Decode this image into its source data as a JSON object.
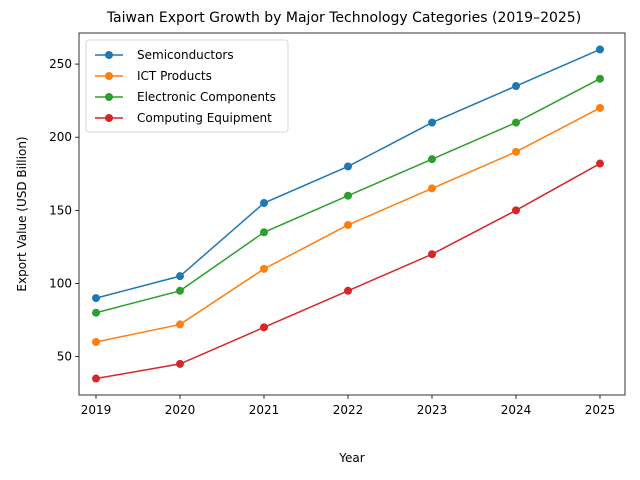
{
  "chart_data": {
    "type": "line",
    "title": "Taiwan Export Growth by Major Technology Categories (2019–2025)",
    "xlabel": "Year",
    "ylabel": "Export Value (USD Billion)",
    "x": [
      "2019",
      "2020",
      "2021",
      "2022",
      "2023",
      "2024",
      "2025"
    ],
    "ylim": [
      23.75,
      271.25
    ],
    "yticks": [
      50,
      100,
      150,
      200,
      250
    ],
    "legend_position": "upper-left",
    "grid": false,
    "series": [
      {
        "name": "Semiconductors",
        "color": "#1f77b4",
        "values": [
          90,
          105,
          155,
          180,
          210,
          235,
          260
        ]
      },
      {
        "name": "ICT Products",
        "color": "#ff7f0e",
        "values": [
          60,
          72,
          110,
          140,
          165,
          190,
          220
        ]
      },
      {
        "name": "Electronic Components",
        "color": "#2ca02c",
        "values": [
          80,
          95,
          135,
          160,
          185,
          210,
          240
        ]
      },
      {
        "name": "Computing Equipment",
        "color": "#d62728",
        "values": [
          35,
          45,
          70,
          95,
          120,
          150,
          182
        ]
      }
    ]
  }
}
